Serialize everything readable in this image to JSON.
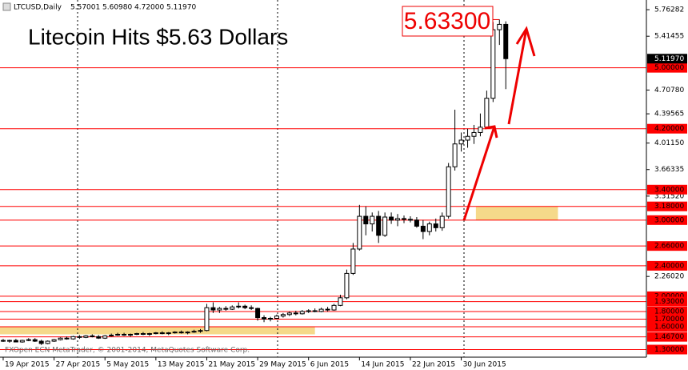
{
  "chart_data": {
    "type": "candlestick",
    "symbol": "LTCUSD,Daily",
    "ohlc_header": [
      "5.57001",
      "5.60980",
      "4.72000",
      "5.11970"
    ],
    "title": "Litecoin Hits $5.63 Dollars",
    "annotation": {
      "value": 5.633,
      "label": "5.63300"
    },
    "footer": "FXOpen ECN MetaTrader, © 2001-2014, MetaQuotes Software Corp.",
    "categories": [
      "19 Apr 2015",
      null,
      null,
      null,
      null,
      null,
      null,
      null,
      "27 Apr 2015",
      null,
      null,
      null,
      null,
      null,
      null,
      null,
      "5 May 2015",
      null,
      null,
      null,
      null,
      null,
      null,
      null,
      "13 May 2015",
      null,
      null,
      null,
      null,
      null,
      null,
      null,
      "21 May 2015",
      null,
      null,
      null,
      null,
      null,
      null,
      null,
      "29 May 2015",
      null,
      null,
      null,
      null,
      null,
      null,
      null,
      "6 Jun 2015",
      null,
      null,
      null,
      null,
      null,
      null,
      null,
      "14 Jun 2015",
      null,
      null,
      null,
      null,
      null,
      null,
      null,
      "22 Jun 2015",
      null,
      null,
      null,
      null,
      null,
      null,
      null,
      "30 Jun 2015",
      null,
      null,
      null,
      null,
      null,
      null,
      null
    ],
    "open": [
      1.42,
      1.41,
      1.42,
      1.4,
      1.42,
      1.43,
      1.41,
      1.38,
      1.41,
      1.43,
      1.45,
      1.44,
      1.47,
      1.46,
      1.48,
      1.47,
      1.45,
      1.48,
      1.49,
      1.5,
      1.49,
      1.5,
      1.51,
      1.5,
      1.51,
      1.52,
      1.51,
      1.52,
      1.53,
      1.52,
      1.53,
      1.54,
      1.55,
      1.85,
      1.82,
      1.84,
      1.83,
      1.86,
      1.87,
      1.85,
      1.84,
      1.72,
      1.7,
      1.71,
      1.74,
      1.76,
      1.78,
      1.77,
      1.8,
      1.81,
      1.8,
      1.83,
      1.82,
      1.88,
      1.98,
      2.3,
      2.62,
      3.05,
      2.95,
      3.05,
      2.8,
      3.04,
      3.0,
      3.02,
      3.01,
      3.0,
      2.92,
      2.85,
      2.95,
      2.9,
      3.05,
      3.7,
      4.0,
      4.05,
      4.1,
      4.15,
      4.22,
      4.6,
      5.5,
      5.57001
    ],
    "high": [
      1.44,
      1.43,
      1.44,
      1.43,
      1.45,
      1.45,
      1.43,
      1.42,
      1.44,
      1.46,
      1.47,
      1.48,
      1.49,
      1.49,
      1.5,
      1.49,
      1.49,
      1.51,
      1.52,
      1.52,
      1.51,
      1.52,
      1.53,
      1.52,
      1.53,
      1.54,
      1.53,
      1.54,
      1.55,
      1.54,
      1.56,
      1.57,
      1.9,
      1.92,
      1.86,
      1.87,
      1.88,
      1.92,
      1.89,
      1.88,
      1.85,
      1.75,
      1.73,
      1.76,
      1.78,
      1.8,
      1.81,
      1.82,
      1.83,
      1.84,
      1.85,
      1.86,
      1.9,
      2.02,
      2.35,
      2.7,
      3.2,
      3.18,
      3.1,
      3.12,
      3.1,
      3.1,
      3.08,
      3.06,
      3.05,
      3.04,
      3.0,
      2.98,
      3.02,
      3.1,
      3.75,
      4.45,
      4.15,
      4.2,
      4.25,
      4.4,
      4.7,
      5.6,
      5.633,
      5.6098
    ],
    "low": [
      1.4,
      1.39,
      1.4,
      1.39,
      1.41,
      1.4,
      1.36,
      1.37,
      1.4,
      1.42,
      1.43,
      1.43,
      1.44,
      1.45,
      1.46,
      1.44,
      1.44,
      1.47,
      1.48,
      1.48,
      1.47,
      1.49,
      1.49,
      1.48,
      1.5,
      1.5,
      1.49,
      1.51,
      1.51,
      1.5,
      1.52,
      1.52,
      1.54,
      1.78,
      1.78,
      1.81,
      1.82,
      1.84,
      1.83,
      1.82,
      1.68,
      1.66,
      1.67,
      1.7,
      1.72,
      1.74,
      1.75,
      1.76,
      1.78,
      1.79,
      1.79,
      1.8,
      1.81,
      1.87,
      1.96,
      2.28,
      2.6,
      2.8,
      2.85,
      2.7,
      2.78,
      2.95,
      2.92,
      2.96,
      2.97,
      2.9,
      2.75,
      2.8,
      2.85,
      2.86,
      3.02,
      3.65,
      3.9,
      3.95,
      4.0,
      4.1,
      4.2,
      4.55,
      5.3,
      4.72
    ],
    "close": [
      1.41,
      1.42,
      1.4,
      1.42,
      1.43,
      1.41,
      1.38,
      1.41,
      1.43,
      1.45,
      1.44,
      1.47,
      1.46,
      1.48,
      1.47,
      1.45,
      1.48,
      1.49,
      1.5,
      1.49,
      1.5,
      1.51,
      1.5,
      1.51,
      1.52,
      1.51,
      1.52,
      1.53,
      1.52,
      1.53,
      1.54,
      1.55,
      1.85,
      1.82,
      1.84,
      1.83,
      1.86,
      1.87,
      1.85,
      1.84,
      1.72,
      1.7,
      1.71,
      1.74,
      1.76,
      1.78,
      1.77,
      1.8,
      1.81,
      1.8,
      1.83,
      1.82,
      1.88,
      1.98,
      2.3,
      2.62,
      3.05,
      2.95,
      3.05,
      2.8,
      3.04,
      3.0,
      3.02,
      3.01,
      3.0,
      2.92,
      2.85,
      2.95,
      2.9,
      3.05,
      3.7,
      4.0,
      4.05,
      4.1,
      4.15,
      4.22,
      4.6,
      5.5,
      5.57,
      5.1197
    ],
    "bull_color": "#ffffff",
    "bear_color": "#000000",
    "xlim": [
      -0.5,
      101.1
    ],
    "ylim": [
      1.2,
      5.89
    ],
    "yticks": [
      {
        "value": 5.76282,
        "label": "5.76282"
      },
      {
        "value": 5.41455,
        "label": "5.41455"
      },
      {
        "value": 4.7078,
        "label": "4.70780"
      },
      {
        "value": 4.39565,
        "label": "4.39565"
      },
      {
        "value": 4.0115,
        "label": "4.01150"
      },
      {
        "value": 3.66335,
        "label": "3.66335"
      },
      {
        "value": 3.3152,
        "label": "3.31520"
      },
      {
        "value": 2.2602,
        "label": "2.26020"
      }
    ],
    "current_price": {
      "value": 5.1197,
      "label": "5.11970"
    },
    "level_color": "#ff0000",
    "levels": [
      {
        "value": 5.0,
        "label": "5.00000"
      },
      {
        "value": 4.2,
        "label": "4.20000"
      },
      {
        "value": 3.4,
        "label": "3.40000"
      },
      {
        "value": 3.18,
        "label": "3.18000"
      },
      {
        "value": 3.0,
        "label": "3.00000"
      },
      {
        "value": 2.66,
        "label": "2.66000"
      },
      {
        "value": 2.4,
        "label": "2.40000"
      },
      {
        "value": 2.0,
        "label": "2.00000"
      },
      {
        "value": 1.93,
        "label": "1.93000"
      },
      {
        "value": 1.8,
        "label": "1.80000"
      },
      {
        "value": 1.7,
        "label": "1.70000"
      },
      {
        "value": 1.6,
        "label": "1.60000"
      },
      {
        "value": 1.467,
        "label": "1.46700"
      },
      {
        "value": 1.3,
        "label": "1.30000"
      }
    ],
    "zone_color": "#f5d98a",
    "zones": [
      {
        "x": [
          -0.5,
          49
        ],
        "y": [
          1.5,
          1.6
        ]
      },
      {
        "x": [
          74.3,
          87.2
        ],
        "y": [
          3.0,
          3.18
        ]
      }
    ]
  }
}
